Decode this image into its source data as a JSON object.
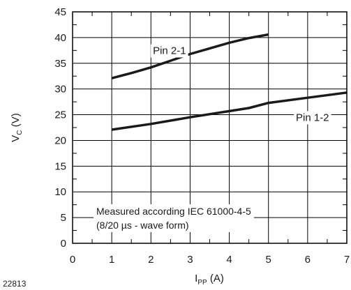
{
  "chart_data": {
    "type": "line",
    "xlabel": {
      "main": "I",
      "sub": "PP",
      "unit": " (A)"
    },
    "ylabel": {
      "main": "V",
      "sub": "C",
      "unit": " (V)"
    },
    "xlim": [
      0,
      7
    ],
    "ylim": [
      0,
      45
    ],
    "x_ticks": [
      0,
      1,
      2,
      3,
      4,
      5,
      6,
      7
    ],
    "y_ticks": [
      0,
      5,
      10,
      15,
      20,
      25,
      30,
      35,
      40,
      45
    ],
    "grid": true,
    "series": [
      {
        "name": "Pin 2-1",
        "points": [
          [
            1.0,
            32.1
          ],
          [
            1.5,
            33.1
          ],
          [
            2.0,
            34.2
          ],
          [
            2.5,
            35.5
          ],
          [
            3.0,
            36.8
          ],
          [
            3.5,
            37.9
          ],
          [
            4.0,
            39.0
          ],
          [
            4.5,
            39.9
          ],
          [
            5.0,
            40.6
          ]
        ]
      },
      {
        "name": "Pin 1-2",
        "points": [
          [
            1.0,
            22.1
          ],
          [
            2.0,
            23.2
          ],
          [
            3.0,
            24.5
          ],
          [
            4.0,
            25.7
          ],
          [
            4.5,
            26.3
          ],
          [
            5.0,
            27.3
          ],
          [
            6.0,
            28.3
          ],
          [
            7.0,
            29.3
          ]
        ]
      }
    ],
    "series_labels": [
      {
        "series": 0,
        "text": "Pin 2-1",
        "at": [
          2.05,
          36.8
        ]
      },
      {
        "series": 1,
        "text": "Pin 1-2",
        "at": [
          5.7,
          23.8
        ]
      }
    ],
    "annotation": {
      "lines": [
        "Measured according IEC 61000-4-5",
        "(8/20 µs - wave form)"
      ]
    }
  },
  "figure_id": "22813"
}
